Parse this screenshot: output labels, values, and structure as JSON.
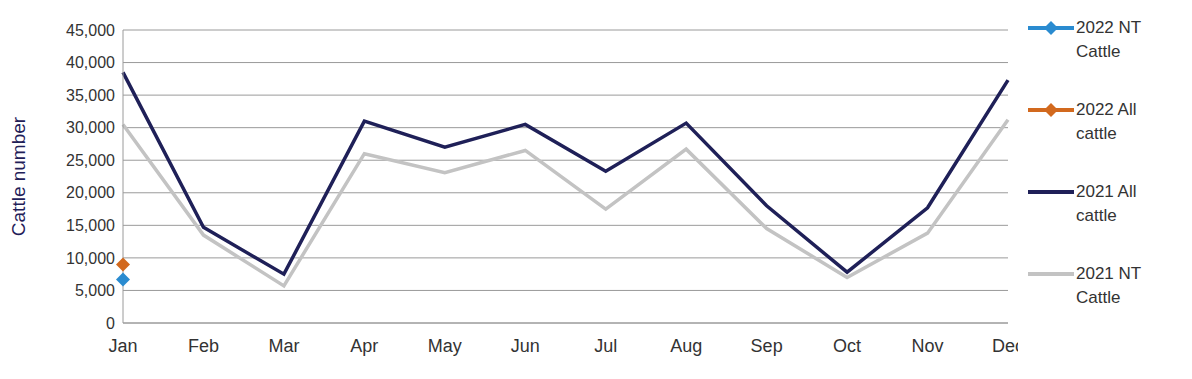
{
  "chart_data": {
    "type": "line",
    "y_label": "Cattle number",
    "categories": [
      "Jan",
      "Feb",
      "Mar",
      "Apr",
      "May",
      "Jun",
      "Jul",
      "Aug",
      "Sep",
      "Oct",
      "Nov",
      "Dec"
    ],
    "series": [
      {
        "name": "2022 NT Cattle",
        "color": "#2a8bd0",
        "marker": "diamond",
        "values": [
          6700,
          null,
          null,
          null,
          null,
          null,
          null,
          null,
          null,
          null,
          null,
          null
        ]
      },
      {
        "name": "2022 All cattle",
        "color": "#d2691e",
        "marker": "diamond",
        "values": [
          9000,
          null,
          null,
          null,
          null,
          null,
          null,
          null,
          null,
          null,
          null,
          null
        ]
      },
      {
        "name": "2021 All cattle",
        "color": "#1f2058",
        "marker": "none",
        "values": [
          38500,
          14700,
          7500,
          31000,
          27000,
          30500,
          23300,
          30700,
          18000,
          7800,
          17700,
          37300
        ]
      },
      {
        "name": "2021 NT Cattle",
        "color": "#c3c3c3",
        "marker": "none",
        "values": [
          30500,
          13500,
          5700,
          26000,
          23100,
          26500,
          17500,
          26700,
          14500,
          7000,
          13800,
          31200
        ]
      }
    ],
    "ylim": [
      0,
      45000
    ],
    "yticks": [
      0,
      {
        "value": 5000,
        "label": "5,000"
      },
      {
        "value": 10000,
        "label": "10,000"
      },
      {
        "value": 15000,
        "label": "15,000"
      },
      {
        "value": 20000,
        "label": "20,000"
      },
      {
        "value": 25000,
        "label": "25,000"
      },
      {
        "value": 30000,
        "label": "30,000"
      },
      {
        "value": 35000,
        "label": "35,000"
      },
      {
        "value": 40000,
        "label": "40,000"
      },
      {
        "value": 45000,
        "label": "45,000"
      }
    ],
    "grid": true,
    "legend": "right"
  }
}
